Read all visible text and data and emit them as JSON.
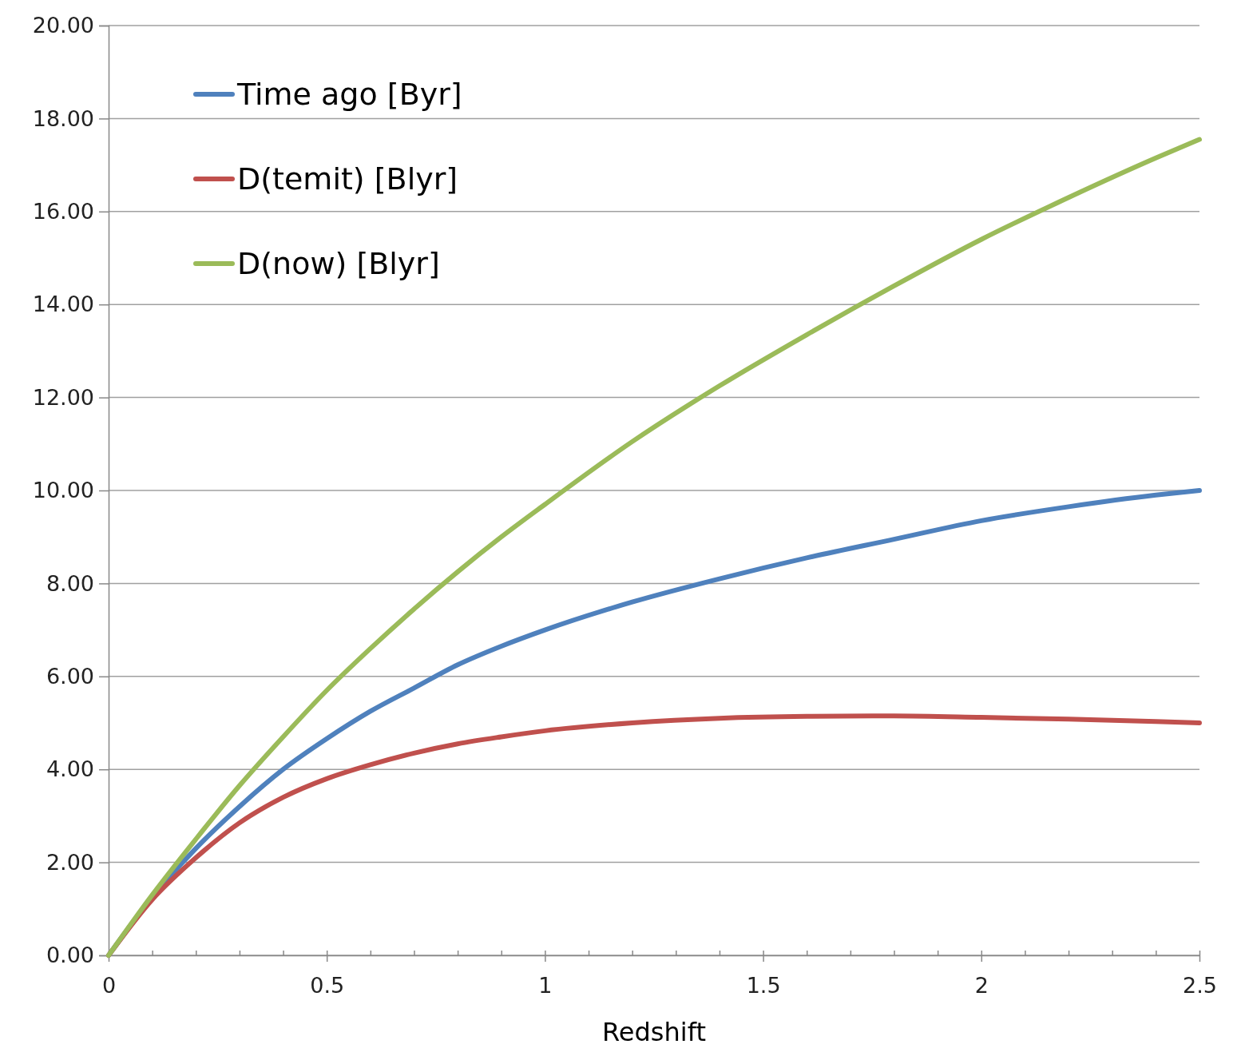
{
  "chart_data": {
    "type": "line",
    "xlabel": "Redshift",
    "xlim": [
      0,
      2.5
    ],
    "xticks": [
      0,
      {
        "value": 0.1,
        "label": null
      },
      {
        "value": 0.2,
        "label": null
      },
      {
        "value": 0.3,
        "label": null
      },
      {
        "value": 0.4,
        "label": null
      },
      0.5,
      {
        "value": 0.6,
        "label": null
      },
      {
        "value": 0.7,
        "label": null
      },
      {
        "value": 0.8,
        "label": null
      },
      {
        "value": 0.9,
        "label": null
      },
      1,
      {
        "value": 1.1,
        "label": null
      },
      {
        "value": 1.2,
        "label": null
      },
      {
        "value": 1.3,
        "label": null
      },
      {
        "value": 1.4,
        "label": null
      },
      1.5,
      {
        "value": 1.6,
        "label": null
      },
      {
        "value": 1.7,
        "label": null
      },
      {
        "value": 1.8,
        "label": null
      },
      {
        "value": 1.9,
        "label": null
      },
      2,
      {
        "value": 2.1,
        "label": null
      },
      {
        "value": 2.2,
        "label": null
      },
      {
        "value": 2.3,
        "label": null
      },
      {
        "value": 2.4,
        "label": null
      },
      2.5
    ],
    "ylim": [
      0,
      20
    ],
    "yticks": [
      {
        "value": 0,
        "label": "0.00"
      },
      {
        "value": 2,
        "label": "2.00"
      },
      {
        "value": 4,
        "label": "4.00"
      },
      {
        "value": 6,
        "label": "6.00"
      },
      {
        "value": 8,
        "label": "8.00"
      },
      {
        "value": 10,
        "label": "10.00"
      },
      {
        "value": 12,
        "label": "12.00"
      },
      {
        "value": 14,
        "label": "14.00"
      },
      {
        "value": 16,
        "label": "16.00"
      },
      {
        "value": 18,
        "label": "18.00"
      },
      {
        "value": 20,
        "label": "20.00"
      }
    ],
    "grid": "y",
    "legend": "top left",
    "marker": "none",
    "line_style": "solid",
    "x": [
      0,
      0.1,
      0.2,
      0.3,
      0.4,
      0.5,
      0.6,
      0.7,
      0.8,
      0.9,
      1.0,
      1.2,
      1.4,
      1.6,
      1.8,
      2.0,
      2.2,
      2.4,
      2.5
    ],
    "series": [
      {
        "name": "Time ago [Byr]",
        "color": "#4f81bd",
        "values": [
          0,
          1.25,
          2.3,
          3.2,
          4.0,
          4.66,
          5.25,
          5.75,
          6.25,
          6.65,
          7.0,
          7.6,
          8.1,
          8.55,
          8.95,
          9.35,
          9.65,
          9.9,
          10.0
        ]
      },
      {
        "name": "D(temit) [Blyr]",
        "color": "#c0504d",
        "values": [
          0,
          1.2,
          2.1,
          2.85,
          3.4,
          3.8,
          4.1,
          4.35,
          4.55,
          4.7,
          4.83,
          5.0,
          5.1,
          5.14,
          5.15,
          5.12,
          5.08,
          5.03,
          5.0
        ]
      },
      {
        "name": "D(now) [Blyr]",
        "color": "#9bbb59",
        "values": [
          0,
          1.3,
          2.5,
          3.65,
          4.7,
          5.7,
          6.6,
          7.45,
          8.25,
          9.0,
          9.7,
          11.05,
          12.25,
          13.35,
          14.4,
          15.4,
          16.3,
          17.15,
          17.55
        ]
      }
    ]
  }
}
